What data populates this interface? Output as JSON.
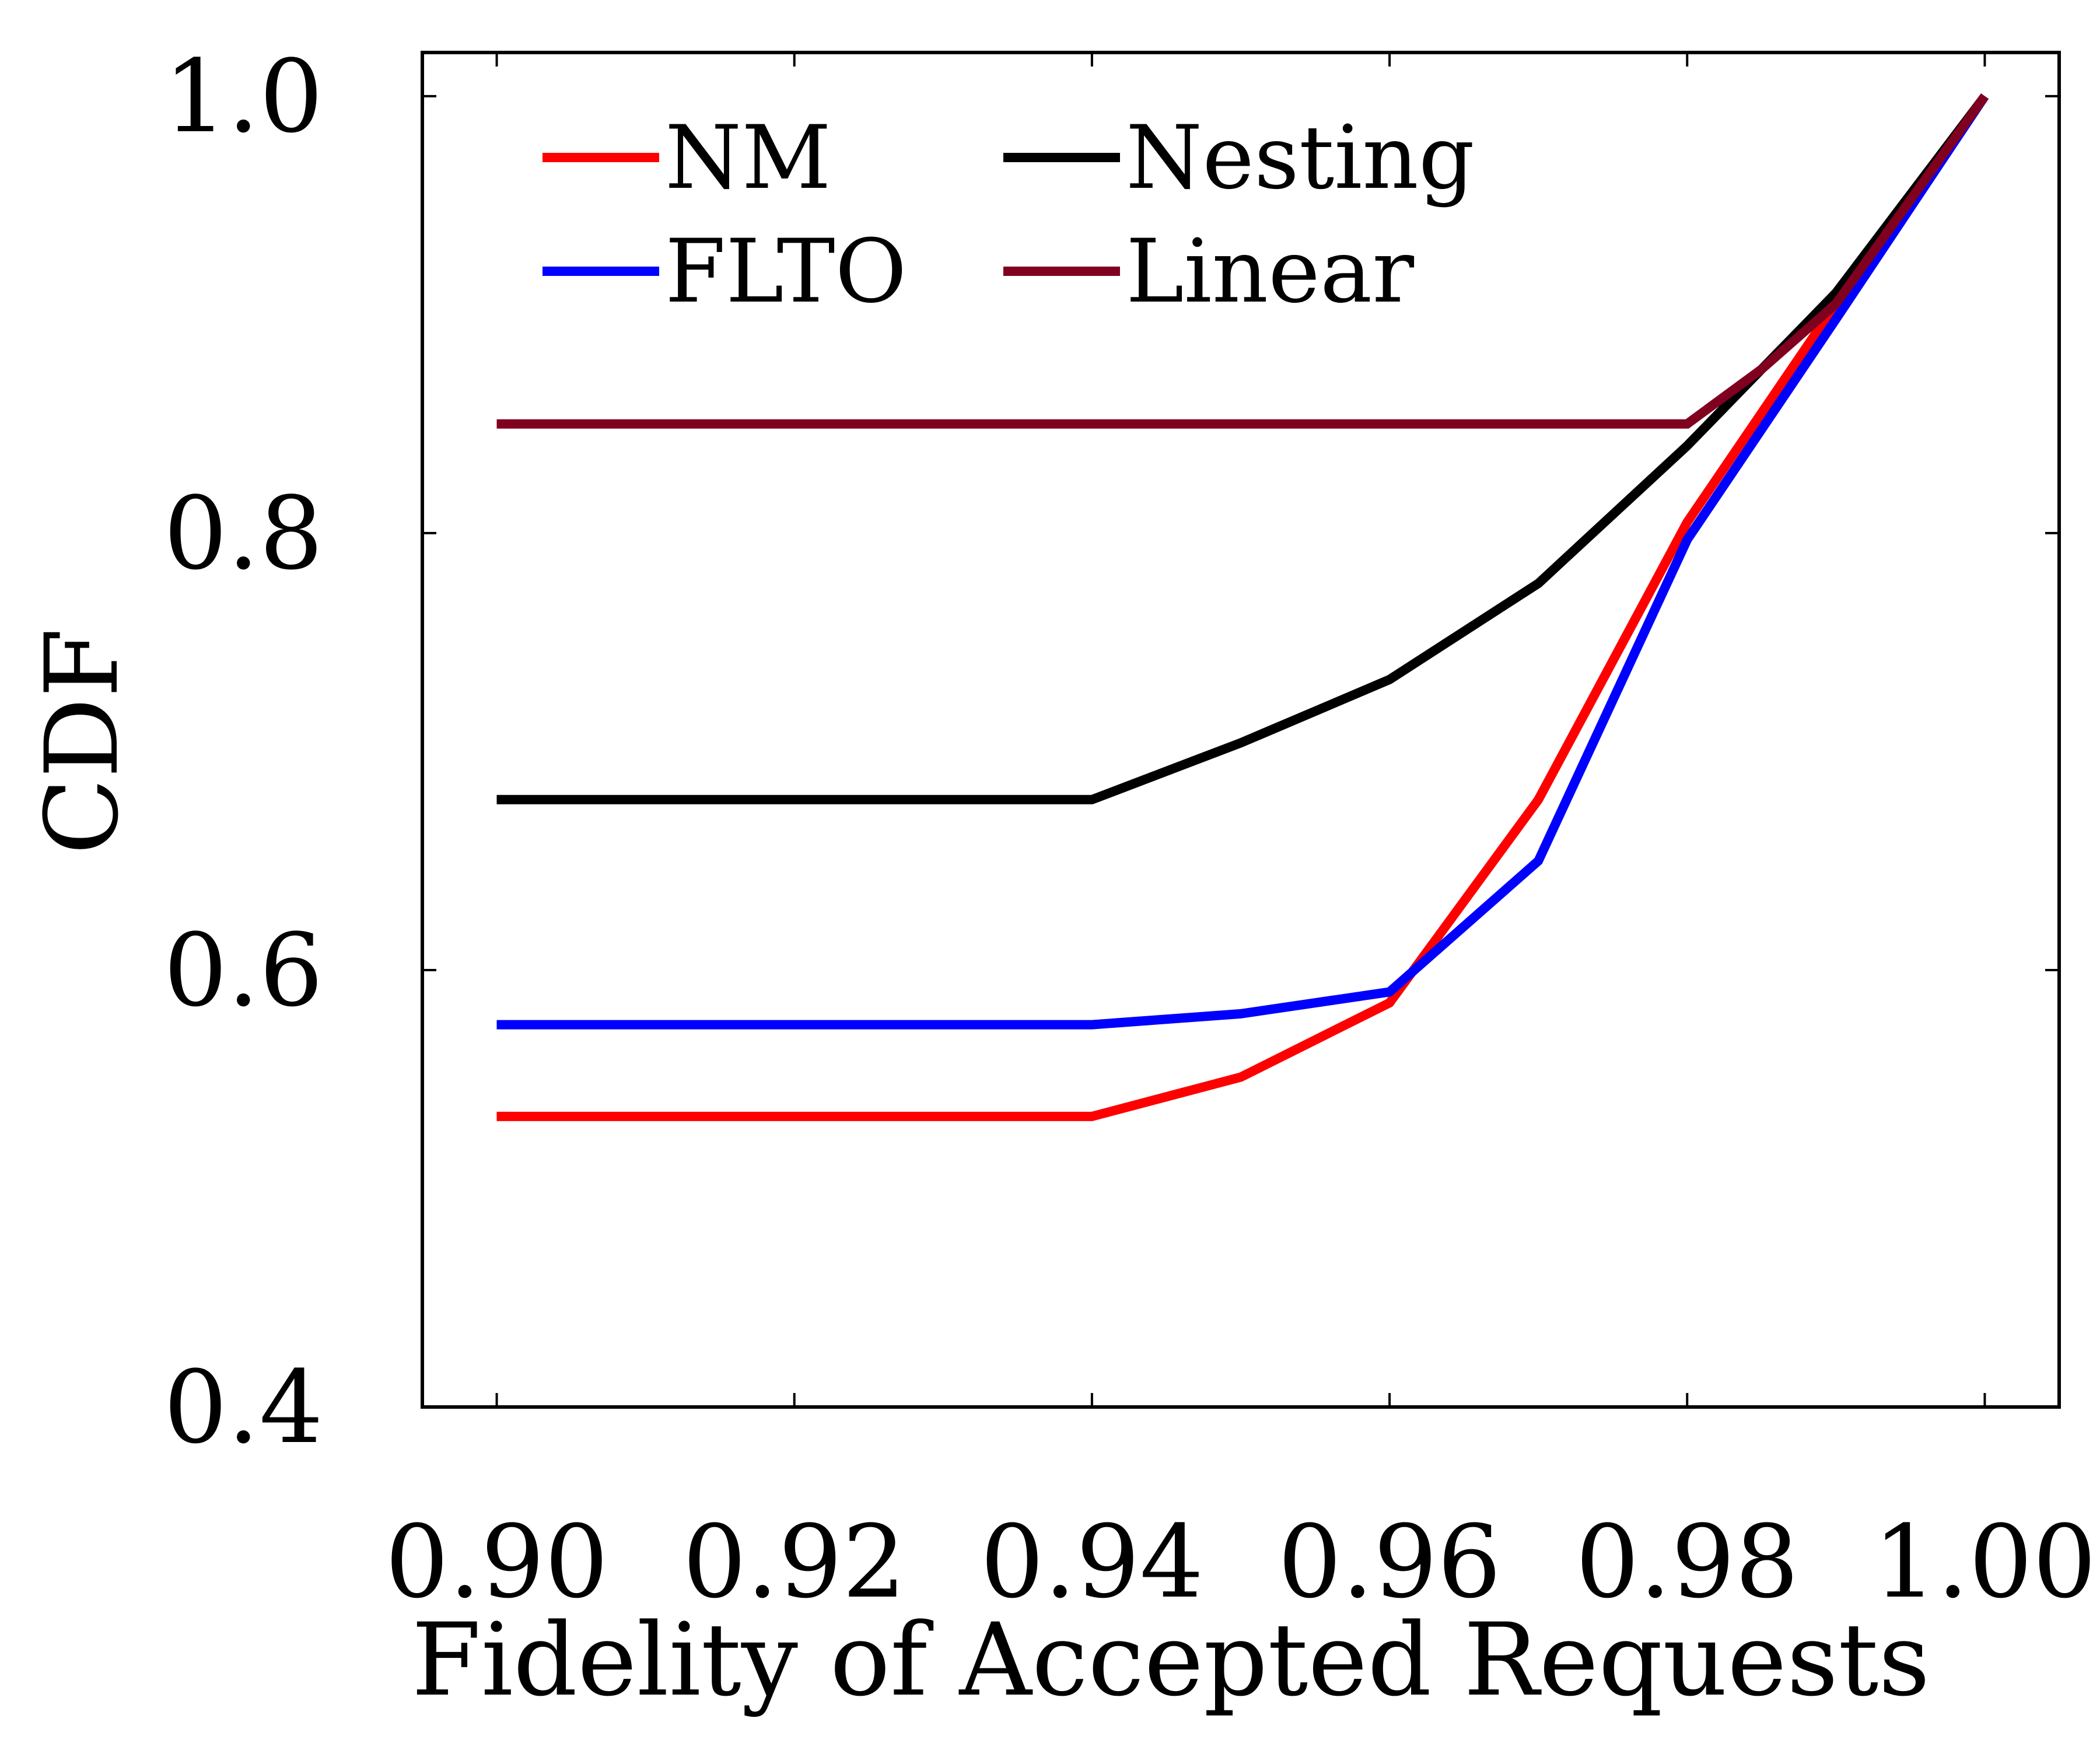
{
  "chart_data": {
    "type": "line",
    "title": "",
    "xlabel": "Fidelity of Accepted Requests",
    "ylabel": "CDF",
    "xlim": [
      0.895,
      1.005
    ],
    "ylim": [
      0.4,
      1.02
    ],
    "xticks": [
      0.9,
      0.92,
      0.94,
      0.96,
      0.98,
      1.0
    ],
    "xtick_labels": [
      "0.90",
      "0.92",
      "0.94",
      "0.96",
      "0.98",
      "1.00"
    ],
    "yticks": [
      0.4,
      0.6,
      0.8,
      1.0
    ],
    "ytick_labels": [
      "0.4",
      "0.6",
      "0.8",
      "1.0"
    ],
    "grid": false,
    "legend_position": "top-left",
    "legend_columns": 2,
    "series": [
      {
        "name": "NM",
        "color": "#ff0000",
        "x": [
          0.9,
          0.94,
          0.95,
          0.96,
          0.97,
          0.98,
          0.99,
          1.0
        ],
        "y": [
          0.533,
          0.533,
          0.551,
          0.585,
          0.678,
          0.805,
          0.905,
          1.0
        ]
      },
      {
        "name": "FLTO",
        "color": "#0000ff",
        "x": [
          0.9,
          0.94,
          0.95,
          0.96,
          0.97,
          0.98,
          0.99,
          1.0
        ],
        "y": [
          0.575,
          0.575,
          0.58,
          0.59,
          0.65,
          0.797,
          0.898,
          1.0
        ]
      },
      {
        "name": "Nesting",
        "color": "#000000",
        "x": [
          0.9,
          0.94,
          0.95,
          0.96,
          0.97,
          0.98,
          0.985,
          0.99,
          1.0
        ],
        "y": [
          0.678,
          0.678,
          0.704,
          0.733,
          0.777,
          0.84,
          0.875,
          0.91,
          1.0
        ]
      },
      {
        "name": "Linear",
        "color": "#800020",
        "x": [
          0.9,
          0.98,
          0.985,
          0.99,
          1.0
        ],
        "y": [
          0.85,
          0.85,
          0.875,
          0.905,
          1.0
        ]
      }
    ]
  }
}
